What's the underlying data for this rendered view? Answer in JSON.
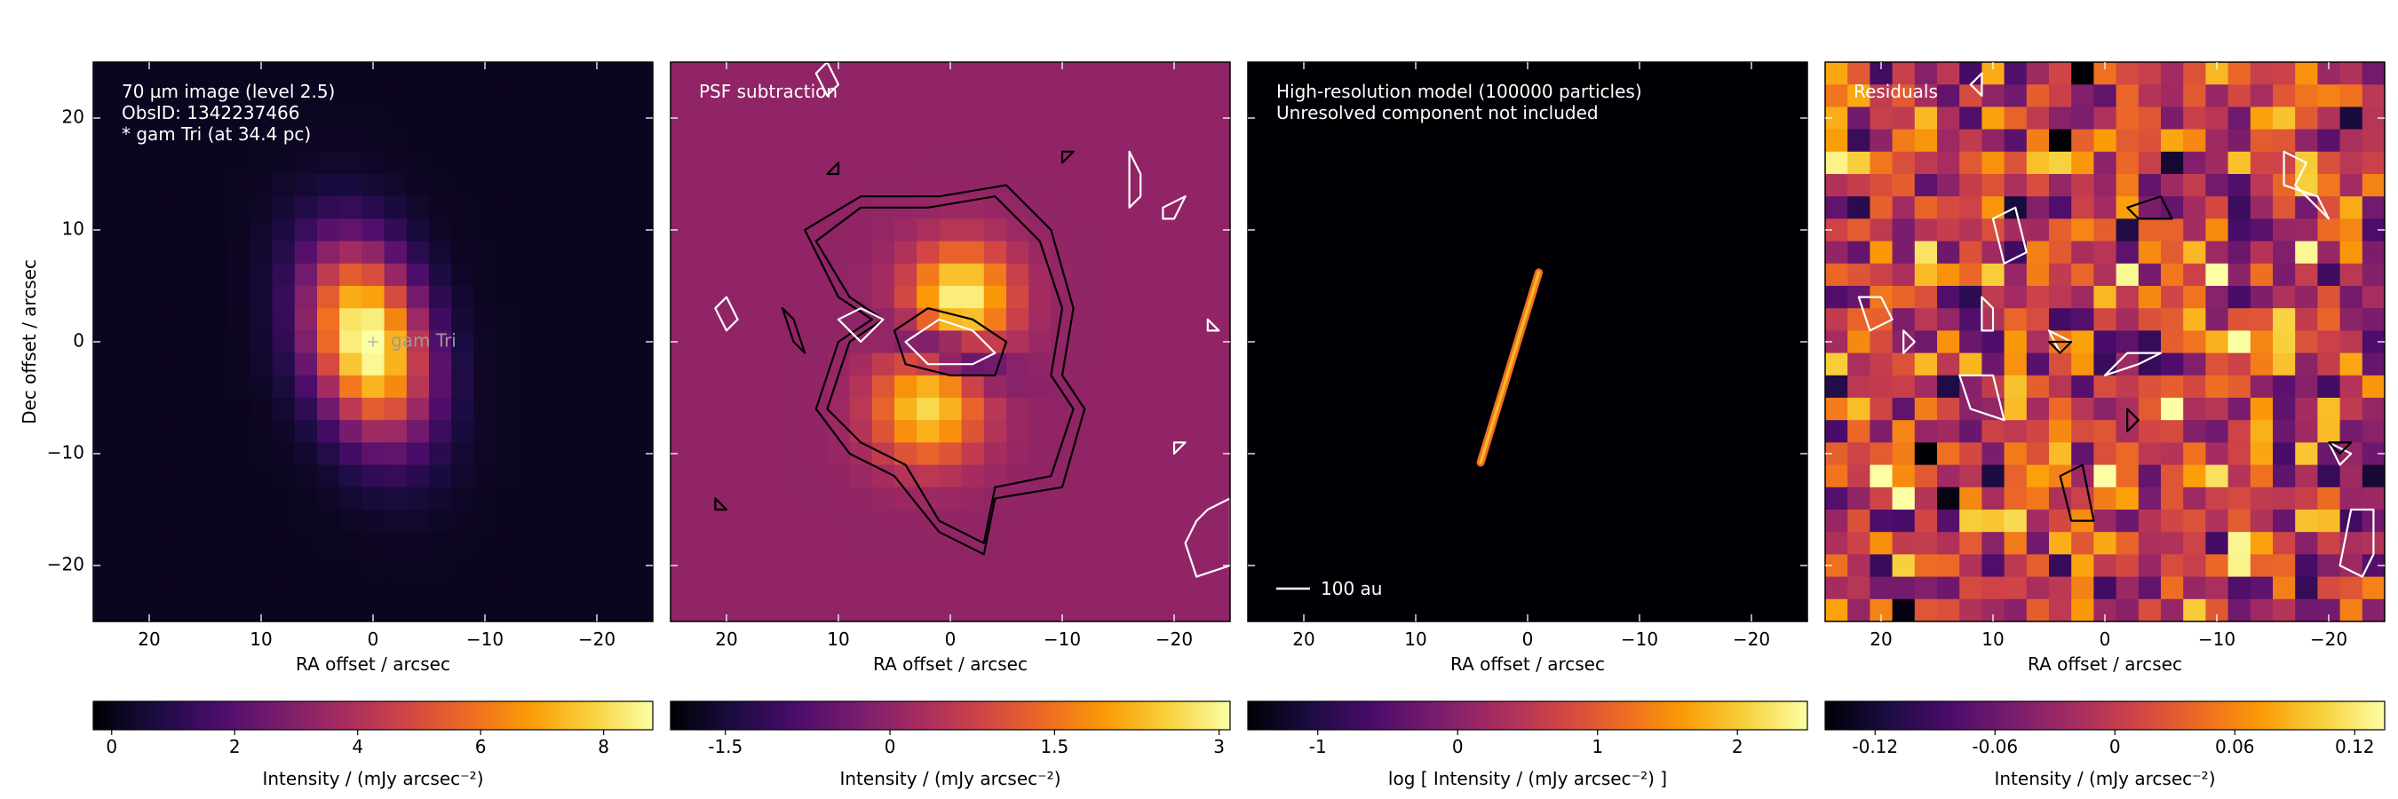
{
  "figure": {
    "colormap": [
      "#000004",
      "#1b0c41",
      "#4a0c6b",
      "#781c6d",
      "#a52c60",
      "#cf4446",
      "#ed6925",
      "#fb9b06",
      "#f7d13d",
      "#fcffa4"
    ]
  },
  "chart_data": [
    {
      "type": "heatmap",
      "panel": "observed-image",
      "annotation_lines": [
        "70 µm image (level 2.5)",
        "ObsID: 1342237466",
        "* gam Tri (at 34.4 pc)"
      ],
      "star_label": "gam Tri",
      "star_position": [
        0,
        0
      ],
      "xlabel": "RA offset / arcsec",
      "ylabel": "Dec offset / arcsec",
      "xlim": [
        25,
        -25
      ],
      "ylim": [
        -25,
        25
      ],
      "xticks": [
        20,
        10,
        0,
        -10,
        -20
      ],
      "xtick_labels": [
        "20",
        "10",
        "0",
        "−10",
        "−20"
      ],
      "yticks": [
        20,
        10,
        0,
        -10,
        -20
      ],
      "ytick_labels": [
        "20",
        "10",
        "0",
        "−10",
        "−20"
      ],
      "pixel_size_arcsec": 2,
      "source_model": {
        "kind": "elongated-gaussian",
        "center": [
          0.5,
          0
        ],
        "peak": 9.0,
        "sigma_major": 6,
        "sigma_minor": 3.5,
        "pa_deg_from_north": 15,
        "background": 0.15
      },
      "colorbar": {
        "label": "Intensity / (mJy arcsec⁻²)",
        "min": -0.3,
        "max": 8.8,
        "ticks": [
          0,
          2,
          4,
          6,
          8
        ],
        "tick_labels": [
          "0",
          "2",
          "4",
          "6",
          "8"
        ]
      }
    },
    {
      "type": "heatmap",
      "panel": "psf-subtraction",
      "annotation_lines": [
        "PSF subtraction"
      ],
      "xlabel": "RA offset / arcsec",
      "xlim": [
        25,
        -25
      ],
      "ylim": [
        -25,
        25
      ],
      "xticks": [
        20,
        10,
        0,
        -10,
        -20
      ],
      "xtick_labels": [
        "20",
        "10",
        "0",
        "−10",
        "−20"
      ],
      "pixel_size_arcsec": 2,
      "source_model": {
        "kind": "two-lobes",
        "background": 0.0,
        "lobes": [
          {
            "center": [
              -1,
              4
            ],
            "peak": 3.0,
            "sigma": 3.2
          },
          {
            "center": [
              2,
              -6
            ],
            "peak": 2.6,
            "sigma": 3.4
          }
        ],
        "deficit": {
          "center": [
            0,
            -1
          ],
          "depth": -2.0,
          "sigma_major": 3.5,
          "sigma_minor": 1.4,
          "pa_deg_from_north": 70
        }
      },
      "contours": [
        {
          "color": "black",
          "points": [
            [
              10,
              4
            ],
            [
              13,
              10
            ],
            [
              8,
              13
            ],
            [
              1,
              13
            ],
            [
              -5,
              14
            ],
            [
              -9,
              10
            ],
            [
              -11,
              3
            ],
            [
              -10,
              -3
            ],
            [
              -12,
              -6
            ],
            [
              -10,
              -13
            ],
            [
              -4,
              -14
            ],
            [
              -3,
              -19
            ],
            [
              1,
              -17
            ],
            [
              5,
              -12
            ],
            [
              9,
              -10
            ],
            [
              12,
              -6
            ],
            [
              10,
              0
            ],
            [
              7,
              2
            ]
          ]
        },
        {
          "color": "black",
          "points": [
            [
              9,
              4
            ],
            [
              12,
              9
            ],
            [
              8,
              12
            ],
            [
              2,
              12
            ],
            [
              -4,
              13
            ],
            [
              -8,
              9
            ],
            [
              -10,
              3
            ],
            [
              -9,
              -3
            ],
            [
              -11,
              -6
            ],
            [
              -9,
              -12
            ],
            [
              -4,
              -13
            ],
            [
              -3,
              -18
            ],
            [
              1,
              -16
            ],
            [
              4,
              -11
            ],
            [
              8,
              -9
            ],
            [
              11,
              -6
            ],
            [
              9,
              0
            ],
            [
              6,
              2
            ]
          ]
        },
        {
          "color": "black",
          "points": [
            [
              5,
              1
            ],
            [
              2,
              3
            ],
            [
              -2,
              2
            ],
            [
              -5,
              0
            ],
            [
              -4,
              -3
            ],
            [
              0,
              -3
            ],
            [
              4,
              -2
            ]
          ]
        },
        {
          "color": "white",
          "points": [
            [
              4,
              0
            ],
            [
              1,
              2
            ],
            [
              -2,
              1
            ],
            [
              -4,
              -1
            ],
            [
              -2,
              -2
            ],
            [
              2,
              -2
            ]
          ]
        },
        {
          "color": "white",
          "points": [
            [
              10,
              2
            ],
            [
              8,
              3
            ],
            [
              6,
              2
            ],
            [
              8,
              0
            ]
          ]
        },
        {
          "color": "white",
          "points": [
            [
              21,
              3
            ],
            [
              20,
              4
            ],
            [
              19,
              2
            ],
            [
              20,
              1
            ]
          ]
        },
        {
          "color": "white",
          "points": [
            [
              12,
              24
            ],
            [
              11,
              25
            ],
            [
              10,
              23
            ],
            [
              11,
              22
            ]
          ]
        },
        {
          "color": "white",
          "points": [
            [
              -16,
              17
            ],
            [
              -17,
              15
            ],
            [
              -17,
              13
            ],
            [
              -16,
              12
            ],
            [
              -16,
              15
            ]
          ]
        },
        {
          "color": "white",
          "points": [
            [
              -19,
              12
            ],
            [
              -21,
              13
            ],
            [
              -20,
              11
            ],
            [
              -19,
              11
            ]
          ]
        },
        {
          "color": "white",
          "points": [
            [
              -23,
              2
            ],
            [
              -24,
              1
            ],
            [
              -23,
              1
            ]
          ]
        },
        {
          "color": "white",
          "points": [
            [
              -20,
              -10
            ],
            [
              -21,
              -9
            ],
            [
              -20,
              -9
            ]
          ]
        },
        {
          "color": "white",
          "points": [
            [
              -23,
              -15
            ],
            [
              -25,
              -14
            ],
            [
              -25,
              -20
            ],
            [
              -22,
              -21
            ],
            [
              -21,
              -18
            ],
            [
              -22,
              -16
            ]
          ]
        },
        {
          "color": "black",
          "points": [
            [
              15,
              3
            ],
            [
              14,
              0
            ],
            [
              13,
              -1
            ],
            [
              14,
              2
            ]
          ]
        },
        {
          "color": "black",
          "points": [
            [
              10,
              16
            ],
            [
              10,
              15
            ],
            [
              11,
              15
            ]
          ]
        },
        {
          "color": "black",
          "points": [
            [
              -10,
              17
            ],
            [
              -11,
              17
            ],
            [
              -10,
              16
            ]
          ]
        },
        {
          "color": "black",
          "points": [
            [
              21,
              -14
            ],
            [
              20,
              -15
            ],
            [
              21,
              -15
            ]
          ]
        }
      ],
      "colorbar": {
        "label": "Intensity / (mJy arcsec⁻²)",
        "min": -2.0,
        "max": 3.1,
        "ticks": [
          -1.5,
          0,
          1.5,
          3
        ],
        "tick_labels": [
          "-1.5",
          "0",
          "1.5",
          "3"
        ]
      }
    },
    {
      "type": "heatmap",
      "panel": "high-resolution-model",
      "annotation_lines": [
        "High-resolution model (100000 particles)",
        "Unresolved component not included"
      ],
      "scalebar_label": "100 au",
      "xlabel": "RA offset / arcsec",
      "xlim": [
        25,
        -25
      ],
      "ylim": [
        -25,
        25
      ],
      "xticks": [
        20,
        10,
        0,
        -10,
        -20
      ],
      "xtick_labels": [
        "20",
        "10",
        "0",
        "−10",
        "−20"
      ],
      "disk": {
        "from": [
          4.2,
          -10.8
        ],
        "to": [
          -1.0,
          6.2
        ],
        "peak_log_intensity": 2.1,
        "edge_log_intensity": 1.2
      },
      "colorbar": {
        "label": "log [ Intensity / (mJy arcsec⁻²) ]",
        "min": -1.5,
        "max": 2.5,
        "ticks": [
          -1,
          0,
          1,
          2
        ],
        "tick_labels": [
          "-1",
          "0",
          "1",
          "2"
        ]
      }
    },
    {
      "type": "heatmap",
      "panel": "residuals",
      "annotation_lines": [
        "Residuals"
      ],
      "xlabel": "RA offset / arcsec",
      "xlim": [
        25,
        -25
      ],
      "ylim": [
        -25,
        25
      ],
      "xticks": [
        20,
        10,
        0,
        -10,
        -20
      ],
      "xtick_labels": [
        "20",
        "10",
        "0",
        "−10",
        "−20"
      ],
      "pixel_size_arcsec": 2,
      "noise": {
        "seed": 7,
        "sigma": 0.055,
        "mean": 0.0
      },
      "contours": [
        {
          "color": "white",
          "points": [
            [
              12,
              23
            ],
            [
              11,
              24
            ],
            [
              11,
              22
            ]
          ]
        },
        {
          "color": "white",
          "points": [
            [
              10,
              11
            ],
            [
              8,
              12
            ],
            [
              7,
              8
            ],
            [
              9,
              7
            ]
          ]
        },
        {
          "color": "white",
          "points": [
            [
              22,
              4
            ],
            [
              20,
              4
            ],
            [
              19,
              2
            ],
            [
              21,
              1
            ]
          ]
        },
        {
          "color": "white",
          "points": [
            [
              18,
              1
            ],
            [
              17,
              0
            ],
            [
              18,
              -1
            ]
          ]
        },
        {
          "color": "white",
          "points": [
            [
              11,
              4
            ],
            [
              10,
              3
            ],
            [
              10,
              1
            ],
            [
              11,
              1
            ]
          ]
        },
        {
          "color": "white",
          "points": [
            [
              5,
              1
            ],
            [
              3,
              0
            ],
            [
              4,
              -1
            ]
          ]
        },
        {
          "color": "white",
          "points": [
            [
              13,
              -3
            ],
            [
              10,
              -3
            ],
            [
              9,
              -7
            ],
            [
              12,
              -6
            ]
          ]
        },
        {
          "color": "white",
          "points": [
            [
              0,
              -3
            ],
            [
              -3,
              -2
            ],
            [
              -5,
              -1
            ],
            [
              -2,
              -1
            ]
          ]
        },
        {
          "color": "white",
          "points": [
            [
              -16,
              17
            ],
            [
              -18,
              16
            ],
            [
              -17,
              14
            ],
            [
              -18,
              13
            ],
            [
              -20,
              11
            ],
            [
              -19,
              13
            ],
            [
              -16,
              14
            ]
          ]
        },
        {
          "color": "white",
          "points": [
            [
              -20,
              -9
            ],
            [
              -22,
              -10
            ],
            [
              -21,
              -11
            ]
          ]
        },
        {
          "color": "white",
          "points": [
            [
              -24,
              -15
            ],
            [
              -22,
              -15
            ],
            [
              -21,
              -20
            ],
            [
              -23,
              -21
            ],
            [
              -24,
              -19
            ]
          ]
        },
        {
          "color": "black",
          "points": [
            [
              -2,
              12
            ],
            [
              -5,
              13
            ],
            [
              -6,
              11
            ],
            [
              -3,
              11
            ]
          ]
        },
        {
          "color": "black",
          "points": [
            [
              4,
              -12
            ],
            [
              2,
              -11
            ],
            [
              1,
              -16
            ],
            [
              3,
              -16
            ]
          ]
        },
        {
          "color": "black",
          "points": [
            [
              -2,
              -6
            ],
            [
              -3,
              -7
            ],
            [
              -2,
              -8
            ]
          ]
        },
        {
          "color": "black",
          "points": [
            [
              5,
              0
            ],
            [
              3,
              0
            ],
            [
              4,
              -1
            ]
          ]
        },
        {
          "color": "black",
          "points": [
            [
              -20,
              -9
            ],
            [
              -22,
              -9
            ],
            [
              -21,
              -10
            ]
          ]
        }
      ],
      "colorbar": {
        "label": "Intensity / (mJy arcsec⁻²)",
        "min": -0.145,
        "max": 0.135,
        "ticks": [
          -0.12,
          -0.06,
          0,
          0.06,
          0.12
        ],
        "tick_labels": [
          "-0.12",
          "-0.06",
          "0",
          "0.06",
          "0.12"
        ]
      }
    }
  ]
}
